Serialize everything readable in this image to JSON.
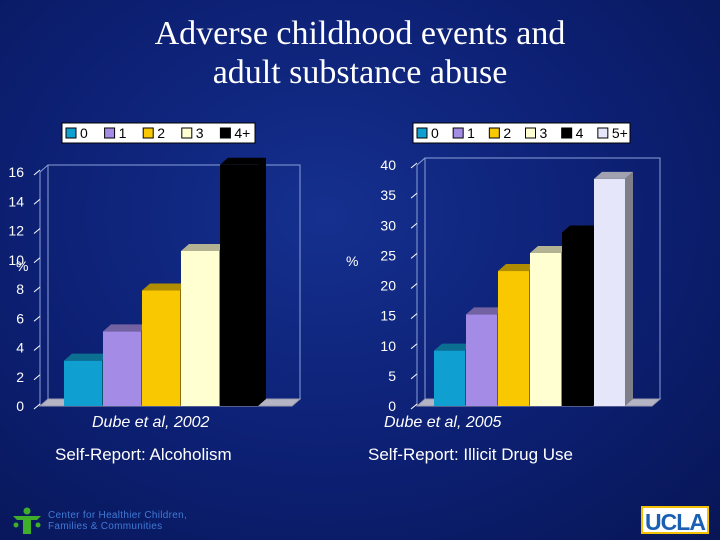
{
  "title": {
    "line1": "Adverse childhood events and",
    "line2": "adult substance abuse"
  },
  "colors": {
    "background": "#0c1f72",
    "series": [
      "#0f9fd0",
      "#a48ce6",
      "#fac800",
      "#ffffd2",
      "#000000",
      "#e6e6fa"
    ]
  },
  "chart_data": [
    {
      "type": "bar",
      "title": "",
      "xlabel": "",
      "ylabel": "%",
      "ylim": [
        0,
        16
      ],
      "yticks": [
        0,
        2,
        4,
        6,
        8,
        10,
        12,
        14,
        16
      ],
      "categories": [
        "0",
        "1",
        "2",
        "3",
        "4+"
      ],
      "values": [
        3.1,
        5.1,
        7.9,
        10.6,
        16.5
      ],
      "legend": [
        "0",
        "1",
        "2",
        "3",
        "4+"
      ],
      "legend_position": "top",
      "grid": false,
      "citation": "Dube et al, 2002",
      "caption": "Self-Report: Alcoholism"
    },
    {
      "type": "bar",
      "title": "",
      "xlabel": "",
      "ylabel": "%",
      "ylim": [
        0,
        40
      ],
      "yticks": [
        0,
        5,
        10,
        15,
        20,
        25,
        30,
        35,
        40
      ],
      "categories": [
        "0",
        "1",
        "2",
        "3",
        "4",
        "5+"
      ],
      "values": [
        9.2,
        15.2,
        22.4,
        25.4,
        28.8,
        37.7
      ],
      "legend": [
        "0",
        "1",
        "2",
        "3",
        "4",
        "5+"
      ],
      "legend_position": "top",
      "grid": false,
      "citation": "Dube et al, 2005",
      "caption": "Self-Report: Illicit Drug Use"
    }
  ],
  "footer": {
    "org_line1": "Center for Healthier Children,",
    "org_line2": "Families & Communities",
    "logo_text": "UCLA"
  }
}
